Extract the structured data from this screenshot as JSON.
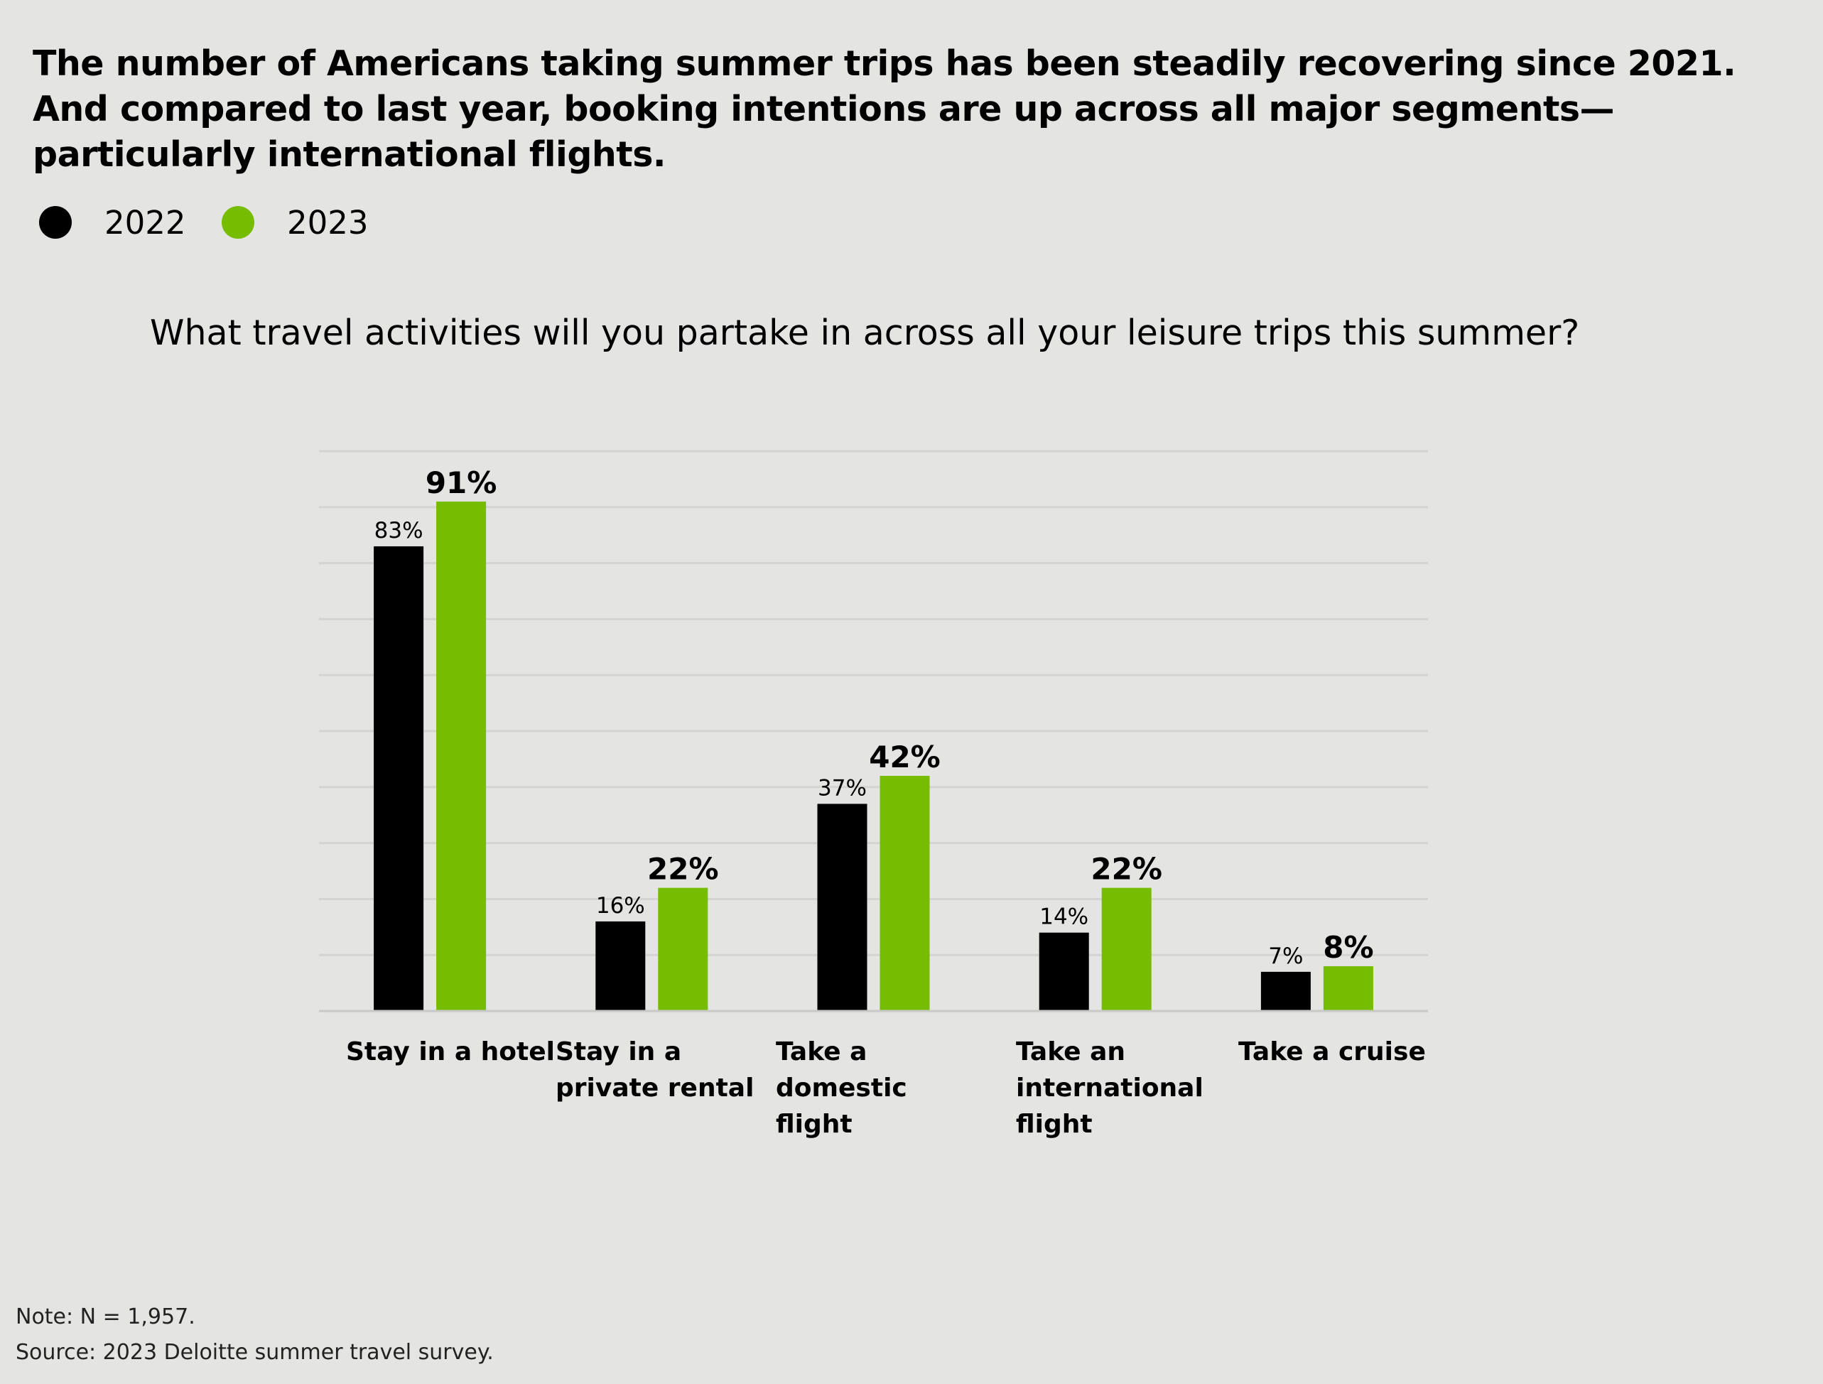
{
  "title": "The number of Americans taking summer trips has been steadily recovering since 2021. And compared to last year, booking intentions are up across all major segments—particularly international flights.",
  "legend": [
    {
      "label": "2022",
      "color": "#000000"
    },
    {
      "label": "2023",
      "color": "#76bc00"
    }
  ],
  "subtitle": "What travel activities will you partake in across all your leisure trips this summer?",
  "footer": {
    "note": "Note: N = 1,957.",
    "source": "Source: 2023 Deloitte summer travel survey."
  },
  "chart_data": {
    "type": "bar",
    "title": "What travel activities will you partake in across all your leisure trips this summer?",
    "categories": [
      "Stay in a hotel",
      "Stay in a private rental",
      "Take a domestic flight",
      "Take an international flight",
      "Take a cruise"
    ],
    "series": [
      {
        "name": "2022",
        "color": "#000000",
        "values": [
          83,
          16,
          37,
          14,
          7
        ],
        "labels": [
          "83%",
          "16%",
          "37%",
          "14%",
          "7%"
        ]
      },
      {
        "name": "2023",
        "color": "#76bc00",
        "values": [
          91,
          22,
          42,
          22,
          8
        ],
        "labels": [
          "91%",
          "22%",
          "42%",
          "22%",
          "8%"
        ]
      }
    ],
    "ylim": [
      0,
      100
    ],
    "grid": true,
    "grid_step": 10,
    "legend_placement": "top-left",
    "xlabel": "",
    "ylabel": ""
  }
}
